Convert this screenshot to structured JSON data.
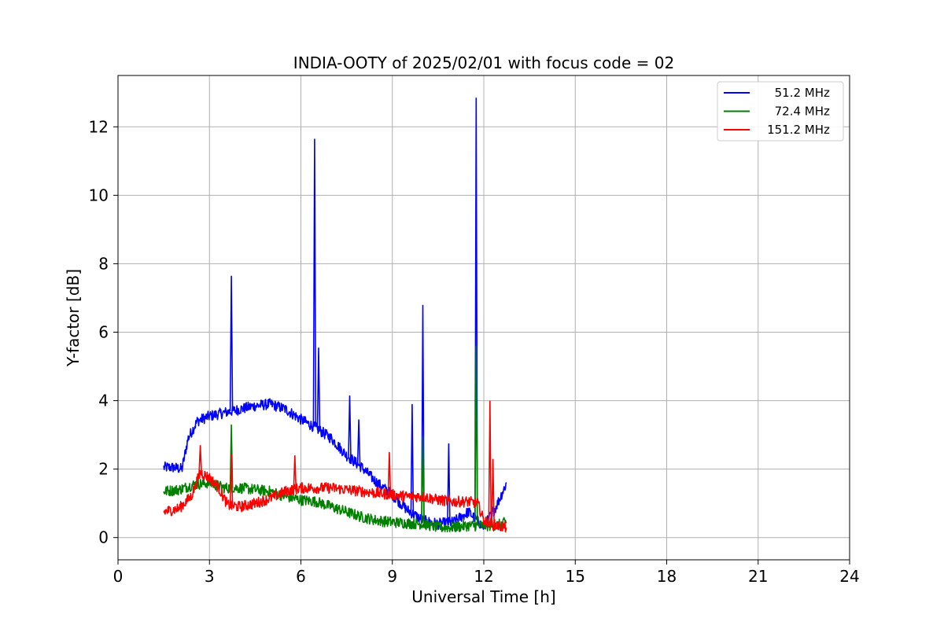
{
  "chart_data": {
    "type": "line",
    "title": "INDIA-OOTY of 2025/02/01 with focus code = 02",
    "xlabel": "Universal Time [h]",
    "ylabel": "Y-factor [dB]",
    "xlim": [
      0,
      24
    ],
    "ylim": [
      -0.65,
      13.5
    ],
    "xticks": [
      0,
      3,
      6,
      9,
      12,
      15,
      18,
      21,
      24
    ],
    "yticks": [
      0,
      2,
      4,
      6,
      8,
      10,
      12
    ],
    "grid": true,
    "legend_position": "top-right",
    "series": [
      {
        "name": "  51.2 MHz",
        "color": "#0000ff",
        "x": [
          1.5,
          1.8,
          2.1,
          2.3,
          2.6,
          3.0,
          3.5,
          4.0,
          4.5,
          5.0,
          5.5,
          6.0,
          6.5,
          7.0,
          7.5,
          8.0,
          8.5,
          9.0,
          9.5,
          10.0,
          10.5,
          11.0,
          11.5,
          12.0,
          12.4,
          12.75
        ],
        "y": [
          2.05,
          2.05,
          2.0,
          2.9,
          3.4,
          3.55,
          3.65,
          3.75,
          3.85,
          3.9,
          3.75,
          3.45,
          3.2,
          2.9,
          2.4,
          2.05,
          1.6,
          1.25,
          0.8,
          0.5,
          0.4,
          0.45,
          0.75,
          0.3,
          0.9,
          1.6
        ],
        "spikes": [
          {
            "x": 3.72,
            "y": 7.65
          },
          {
            "x": 6.45,
            "y": 11.65
          },
          {
            "x": 6.58,
            "y": 5.55
          },
          {
            "x": 7.6,
            "y": 4.15
          },
          {
            "x": 7.9,
            "y": 3.45
          },
          {
            "x": 9.65,
            "y": 3.9
          },
          {
            "x": 10.0,
            "y": 6.8
          },
          {
            "x": 10.85,
            "y": 2.75
          },
          {
            "x": 11.75,
            "y": 12.85
          }
        ]
      },
      {
        "name": "  72.4 MHz",
        "color": "#008000",
        "x": [
          1.5,
          2.0,
          2.5,
          3.0,
          3.5,
          4.0,
          4.5,
          5.0,
          5.5,
          6.0,
          6.5,
          7.0,
          7.5,
          8.0,
          8.5,
          9.0,
          9.5,
          10.0,
          10.5,
          11.0,
          11.5,
          12.0,
          12.4,
          12.75
        ],
        "y": [
          1.35,
          1.4,
          1.55,
          1.6,
          1.45,
          1.45,
          1.4,
          1.35,
          1.2,
          1.1,
          1.05,
          0.9,
          0.75,
          0.6,
          0.5,
          0.45,
          0.42,
          0.4,
          0.3,
          0.3,
          0.35,
          0.35,
          0.35,
          0.45
        ],
        "spikes": [
          {
            "x": 3.72,
            "y": 3.3
          },
          {
            "x": 10.0,
            "y": 2.95
          },
          {
            "x": 11.75,
            "y": 5.6
          }
        ]
      },
      {
        "name": "151.2 MHz",
        "color": "#ff0000",
        "x": [
          1.5,
          2.0,
          2.4,
          2.7,
          3.0,
          3.3,
          3.6,
          4.0,
          4.5,
          5.0,
          5.5,
          6.0,
          6.5,
          7.0,
          7.5,
          8.0,
          8.5,
          9.0,
          9.5,
          10.0,
          10.5,
          11.0,
          11.5,
          11.8,
          12.0,
          12.4,
          12.75
        ],
        "y": [
          0.75,
          0.85,
          1.2,
          1.9,
          1.75,
          1.45,
          0.95,
          0.9,
          1.0,
          1.15,
          1.35,
          1.45,
          1.45,
          1.45,
          1.4,
          1.35,
          1.3,
          1.25,
          1.2,
          1.2,
          1.1,
          1.05,
          1.05,
          1.0,
          0.5,
          0.35,
          0.3
        ],
        "spikes": [
          {
            "x": 2.7,
            "y": 2.7
          },
          {
            "x": 3.72,
            "y": 2.45
          },
          {
            "x": 5.8,
            "y": 2.4
          },
          {
            "x": 8.9,
            "y": 2.5
          },
          {
            "x": 12.2,
            "y": 4.0
          },
          {
            "x": 12.3,
            "y": 2.3
          }
        ]
      }
    ]
  }
}
